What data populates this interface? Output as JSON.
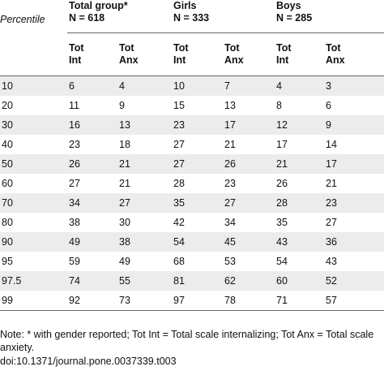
{
  "header": {
    "percentile_label": "Percentile",
    "groups": [
      {
        "name": "Total group*",
        "n": "N = 618"
      },
      {
        "name": "Girls",
        "n": "N = 333"
      },
      {
        "name": "Boys",
        "n": "N = 285"
      }
    ],
    "subcols": [
      {
        "line1": "Tot",
        "line2": "Int"
      },
      {
        "line1": "Tot",
        "line2": "Anx"
      }
    ]
  },
  "rows": [
    [
      "10",
      "6",
      "4",
      "10",
      "7",
      "4",
      "3"
    ],
    [
      "20",
      "11",
      "9",
      "15",
      "13",
      "8",
      "6"
    ],
    [
      "30",
      "16",
      "13",
      "23",
      "17",
      "12",
      "9"
    ],
    [
      "40",
      "23",
      "18",
      "27",
      "21",
      "17",
      "14"
    ],
    [
      "50",
      "26",
      "21",
      "27",
      "26",
      "21",
      "17"
    ],
    [
      "60",
      "27",
      "21",
      "28",
      "23",
      "26",
      "21"
    ],
    [
      "70",
      "34",
      "27",
      "35",
      "27",
      "28",
      "23"
    ],
    [
      "80",
      "38",
      "30",
      "42",
      "34",
      "35",
      "27"
    ],
    [
      "90",
      "49",
      "38",
      "54",
      "45",
      "43",
      "36"
    ],
    [
      "95",
      "59",
      "49",
      "68",
      "53",
      "54",
      "43"
    ],
    [
      "97.5",
      "74",
      "55",
      "81",
      "62",
      "60",
      "52"
    ],
    [
      "99",
      "92",
      "73",
      "97",
      "78",
      "71",
      "57"
    ]
  ],
  "note": "Note: * with gender reported; Tot Int = Total scale internalizing; Tot Anx = Total scale anxiety.",
  "doi": "doi:10.1371/journal.pone.0037339.t003"
}
